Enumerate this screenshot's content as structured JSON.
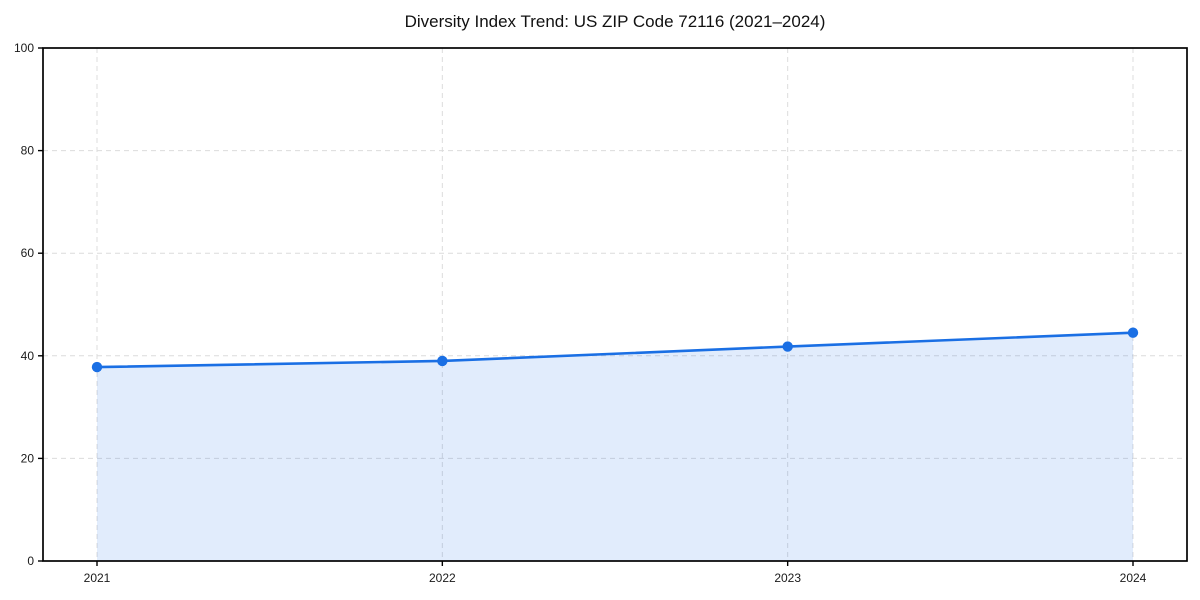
{
  "chart_data": {
    "type": "area",
    "title": "Diversity Index Trend: US ZIP Code 72116 (2021–2024)",
    "categories": [
      "2021",
      "2022",
      "2023",
      "2024"
    ],
    "series": [
      {
        "name": "Diversity Index",
        "values": [
          37.8,
          39.0,
          41.8,
          44.5
        ]
      }
    ],
    "xlabel": "",
    "ylabel": "",
    "ylim": [
      0,
      100
    ],
    "yticks": [
      0,
      20,
      40,
      60,
      80,
      100
    ],
    "grid": true,
    "grid_style": "dashed",
    "legend": "none",
    "marker": "circle",
    "colors": {
      "line": "#1a6fe4",
      "fill": "rgba(26,111,228,0.13)",
      "gridline": "#dcdcdc",
      "axis": "#000000",
      "background": "#ffffff",
      "title_text": "#111111",
      "tick_text": "#1a1a1a"
    }
  }
}
